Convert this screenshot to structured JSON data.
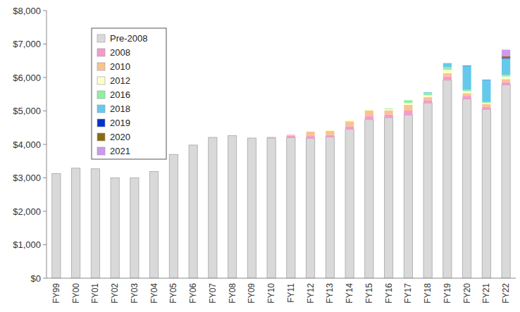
{
  "chart_data": {
    "type": "bar",
    "stacked": true,
    "grid": false,
    "legend": "top-left",
    "categories": [
      "FY99",
      "FY00",
      "FY01",
      "FY02",
      "FY03",
      "FY04",
      "FY05",
      "FY06",
      "FY07",
      "FY08",
      "FY09",
      "FY10",
      "FY11",
      "FY12",
      "FY13",
      "FY14",
      "FY15",
      "FY16",
      "FY17",
      "FY18",
      "FY19",
      "FY20",
      "FY21",
      "FY22"
    ],
    "ylim": [
      0,
      8000
    ],
    "yticks": [
      {
        "value": 0,
        "label": "$0"
      },
      {
        "value": 1000,
        "label": "$1,000"
      },
      {
        "value": 2000,
        "label": "$2,000"
      },
      {
        "value": 3000,
        "label": "$3,000"
      },
      {
        "value": 4000,
        "label": "$4,000"
      },
      {
        "value": 5000,
        "label": "$5,000"
      },
      {
        "value": 6000,
        "label": "$6,000"
      },
      {
        "value": 7000,
        "label": "$7,000"
      },
      {
        "value": 8000,
        "label": "$8,000"
      }
    ],
    "series": [
      {
        "name": "Pre-2008",
        "color": "#d9d9d9",
        "values": [
          3130,
          3290,
          3270,
          3000,
          3000,
          3190,
          3700,
          3980,
          4210,
          4260,
          4190,
          4190,
          4200,
          4180,
          4220,
          4450,
          4740,
          4800,
          4880,
          5240,
          5920,
          5360,
          5050,
          5780
        ]
      },
      {
        "name": "2008",
        "color": "#f59acb",
        "values": [
          0,
          0,
          0,
          0,
          0,
          0,
          0,
          0,
          0,
          0,
          0,
          30,
          60,
          70,
          60,
          90,
          100,
          90,
          130,
          80,
          110,
          90,
          70,
          80
        ]
      },
      {
        "name": "2010",
        "color": "#f8c391",
        "values": [
          0,
          0,
          0,
          0,
          0,
          0,
          0,
          0,
          0,
          0,
          0,
          0,
          30,
          130,
          120,
          150,
          170,
          120,
          170,
          90,
          100,
          80,
          80,
          90
        ]
      },
      {
        "name": "2012",
        "color": "#ffffcc",
        "values": [
          0,
          0,
          0,
          0,
          0,
          0,
          0,
          0,
          0,
          0,
          0,
          0,
          0,
          0,
          40,
          40,
          30,
          40,
          60,
          60,
          100,
          60,
          40,
          80
        ]
      },
      {
        "name": "2016",
        "color": "#8ff0a4",
        "values": [
          0,
          0,
          0,
          0,
          0,
          0,
          0,
          0,
          0,
          0,
          0,
          0,
          0,
          0,
          0,
          0,
          0,
          20,
          80,
          70,
          80,
          40,
          30,
          50
        ]
      },
      {
        "name": "2018",
        "color": "#66c9ec",
        "values": [
          0,
          0,
          0,
          0,
          0,
          0,
          0,
          0,
          0,
          0,
          0,
          0,
          0,
          0,
          0,
          0,
          0,
          0,
          0,
          20,
          120,
          720,
          650,
          480
        ]
      },
      {
        "name": "2019",
        "color": "#0033cc",
        "values": [
          0,
          0,
          0,
          0,
          0,
          0,
          0,
          0,
          0,
          0,
          0,
          0,
          0,
          0,
          0,
          0,
          0,
          0,
          0,
          0,
          0,
          10,
          10,
          20
        ]
      },
      {
        "name": "2020",
        "color": "#8b6a14",
        "values": [
          0,
          0,
          0,
          0,
          0,
          0,
          0,
          0,
          0,
          0,
          0,
          0,
          0,
          0,
          0,
          0,
          0,
          0,
          0,
          0,
          0,
          0,
          0,
          50
        ]
      },
      {
        "name": "2021",
        "color": "#cc99ee",
        "values": [
          0,
          0,
          0,
          0,
          0,
          0,
          0,
          0,
          0,
          0,
          0,
          0,
          0,
          0,
          0,
          0,
          0,
          0,
          0,
          0,
          0,
          0,
          0,
          200
        ]
      }
    ]
  }
}
